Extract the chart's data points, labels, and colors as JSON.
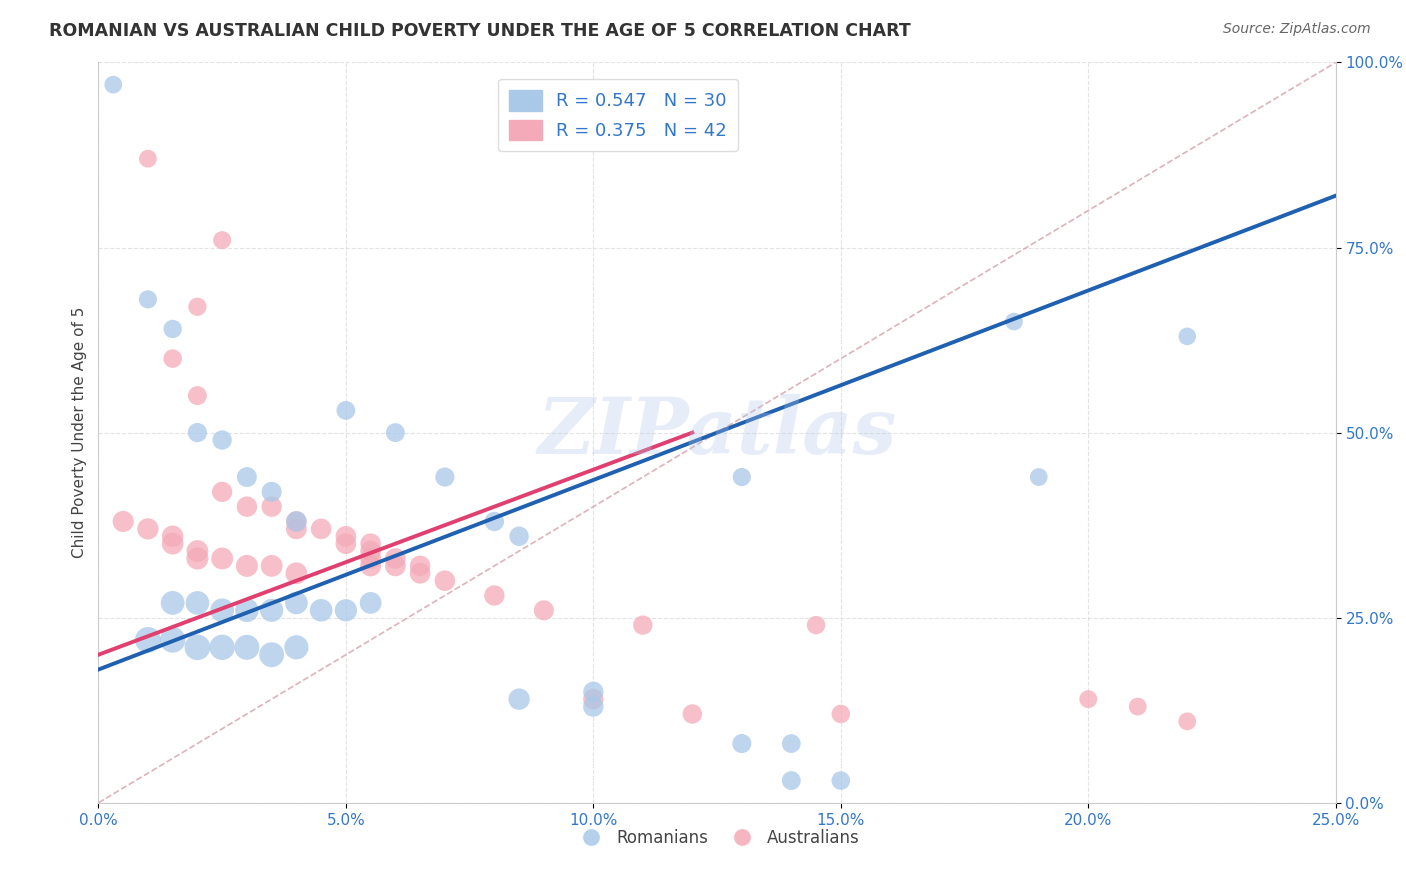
{
  "title": "ROMANIAN VS AUSTRALIAN CHILD POVERTY UNDER THE AGE OF 5 CORRELATION CHART",
  "source": "Source: ZipAtlas.com",
  "ylabel": "Child Poverty Under the Age of 5",
  "x_tick_labels": [
    "0.0%",
    "5.0%",
    "10.0%",
    "15.0%",
    "20.0%",
    "25.0%"
  ],
  "y_tick_labels_right": [
    "0.0%",
    "25.0%",
    "50.0%",
    "75.0%",
    "100.0%"
  ],
  "x_ticks": [
    0,
    5,
    10,
    15,
    20,
    25
  ],
  "y_ticks": [
    0,
    25,
    50,
    75,
    100
  ],
  "xlim": [
    0,
    25
  ],
  "ylim": [
    0,
    100
  ],
  "watermark": "ZIPatlas",
  "romanians_color": "#a8c8e8",
  "australians_color": "#f4aab8",
  "trend_blue": "#2060b0",
  "trend_pink": "#e04070",
  "diag_color": "#ccaaaa",
  "background_color": "#ffffff",
  "grid_color": "#dddddd",
  "romanians_scatter": [
    [
      0.3,
      97
    ],
    [
      1.0,
      68
    ],
    [
      1.5,
      64
    ],
    [
      2.0,
      50
    ],
    [
      2.5,
      49
    ],
    [
      3.0,
      44
    ],
    [
      3.5,
      42
    ],
    [
      4.0,
      38
    ],
    [
      5.0,
      53
    ],
    [
      6.0,
      50
    ],
    [
      7.0,
      44
    ],
    [
      8.0,
      38
    ],
    [
      8.5,
      36
    ],
    [
      1.5,
      27
    ],
    [
      2.0,
      27
    ],
    [
      2.5,
      26
    ],
    [
      3.0,
      26
    ],
    [
      3.5,
      26
    ],
    [
      4.0,
      27
    ],
    [
      4.5,
      26
    ],
    [
      5.0,
      26
    ],
    [
      5.5,
      27
    ],
    [
      1.0,
      22
    ],
    [
      1.5,
      22
    ],
    [
      2.0,
      21
    ],
    [
      2.5,
      21
    ],
    [
      3.0,
      21
    ],
    [
      3.5,
      20
    ],
    [
      4.0,
      21
    ],
    [
      8.5,
      14
    ],
    [
      10.0,
      13
    ],
    [
      13.0,
      8
    ],
    [
      14.0,
      8
    ],
    [
      18.5,
      65
    ],
    [
      22.0,
      63
    ],
    [
      13.0,
      44
    ],
    [
      19.0,
      44
    ],
    [
      10.0,
      15
    ],
    [
      14.0,
      3
    ],
    [
      15.0,
      3
    ]
  ],
  "australians_scatter": [
    [
      1.0,
      87
    ],
    [
      2.5,
      76
    ],
    [
      2.0,
      67
    ],
    [
      1.5,
      60
    ],
    [
      2.0,
      55
    ],
    [
      2.5,
      42
    ],
    [
      3.0,
      40
    ],
    [
      3.5,
      40
    ],
    [
      4.0,
      38
    ],
    [
      4.0,
      37
    ],
    [
      4.5,
      37
    ],
    [
      5.0,
      36
    ],
    [
      5.0,
      35
    ],
    [
      5.5,
      35
    ],
    [
      5.5,
      34
    ],
    [
      5.5,
      33
    ],
    [
      5.5,
      32
    ],
    [
      6.0,
      33
    ],
    [
      6.0,
      32
    ],
    [
      6.5,
      32
    ],
    [
      6.5,
      31
    ],
    [
      0.5,
      38
    ],
    [
      1.0,
      37
    ],
    [
      1.5,
      36
    ],
    [
      1.5,
      35
    ],
    [
      2.0,
      34
    ],
    [
      2.0,
      33
    ],
    [
      2.5,
      33
    ],
    [
      3.0,
      32
    ],
    [
      3.5,
      32
    ],
    [
      4.0,
      31
    ],
    [
      7.0,
      30
    ],
    [
      8.0,
      28
    ],
    [
      9.0,
      26
    ],
    [
      11.0,
      24
    ],
    [
      14.5,
      24
    ],
    [
      20.0,
      14
    ],
    [
      21.0,
      13
    ],
    [
      22.0,
      11
    ],
    [
      10.0,
      14
    ],
    [
      12.0,
      12
    ],
    [
      15.0,
      12
    ]
  ]
}
